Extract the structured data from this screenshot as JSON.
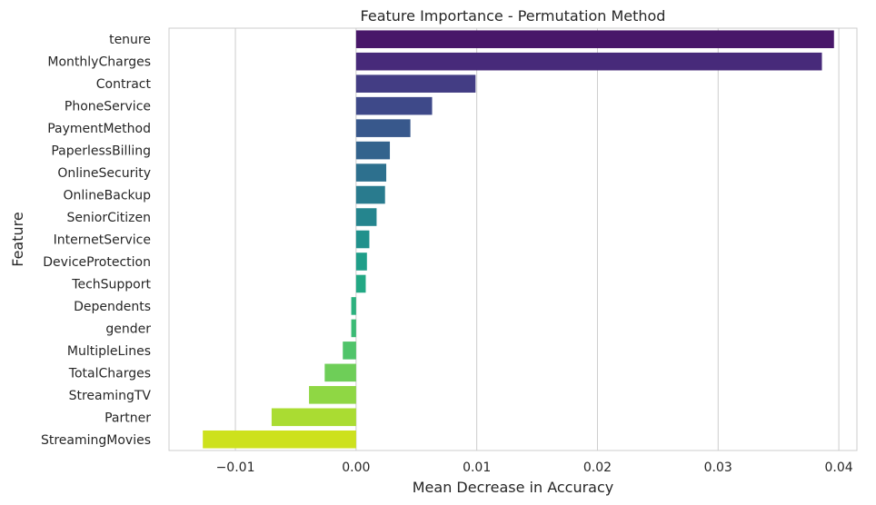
{
  "chart_data": {
    "type": "bar",
    "orientation": "horizontal",
    "title": "Feature Importance - Permutation Method",
    "xlabel": "Mean Decrease in Accuracy",
    "ylabel": "Feature",
    "xlim": [
      -0.0155,
      0.0415
    ],
    "xticks": [
      -0.01,
      0.0,
      0.01,
      0.02,
      0.03,
      0.04
    ],
    "xtick_labels": [
      "−0.01",
      "0.00",
      "0.01",
      "0.02",
      "0.03",
      "0.04"
    ],
    "grid": "vertical",
    "categories": [
      "tenure",
      "MonthlyCharges",
      "Contract",
      "PhoneService",
      "PaymentMethod",
      "PaperlessBilling",
      "OnlineSecurity",
      "OnlineBackup",
      "SeniorCitizen",
      "InternetService",
      "DeviceProtection",
      "TechSupport",
      "Dependents",
      "gender",
      "MultipleLines",
      "TotalCharges",
      "StreamingTV",
      "Partner",
      "StreamingMovies"
    ],
    "values": [
      0.0396,
      0.0386,
      0.0099,
      0.0063,
      0.0045,
      0.0028,
      0.0025,
      0.0024,
      0.0017,
      0.0011,
      0.0009,
      0.0008,
      -0.0004,
      -0.0004,
      -0.0011,
      -0.0026,
      -0.0039,
      -0.007,
      -0.0127
    ],
    "colors": [
      "#481769",
      "#472A7A",
      "#433D84",
      "#3E4989",
      "#38588C",
      "#33638D",
      "#2D708E",
      "#297B8E",
      "#25858E",
      "#21918C",
      "#1F9E89",
      "#22A884",
      "#2CB17E",
      "#3BBB75",
      "#50C46A",
      "#6ECE58",
      "#8FD744",
      "#AADC32",
      "#CDE11D"
    ]
  }
}
